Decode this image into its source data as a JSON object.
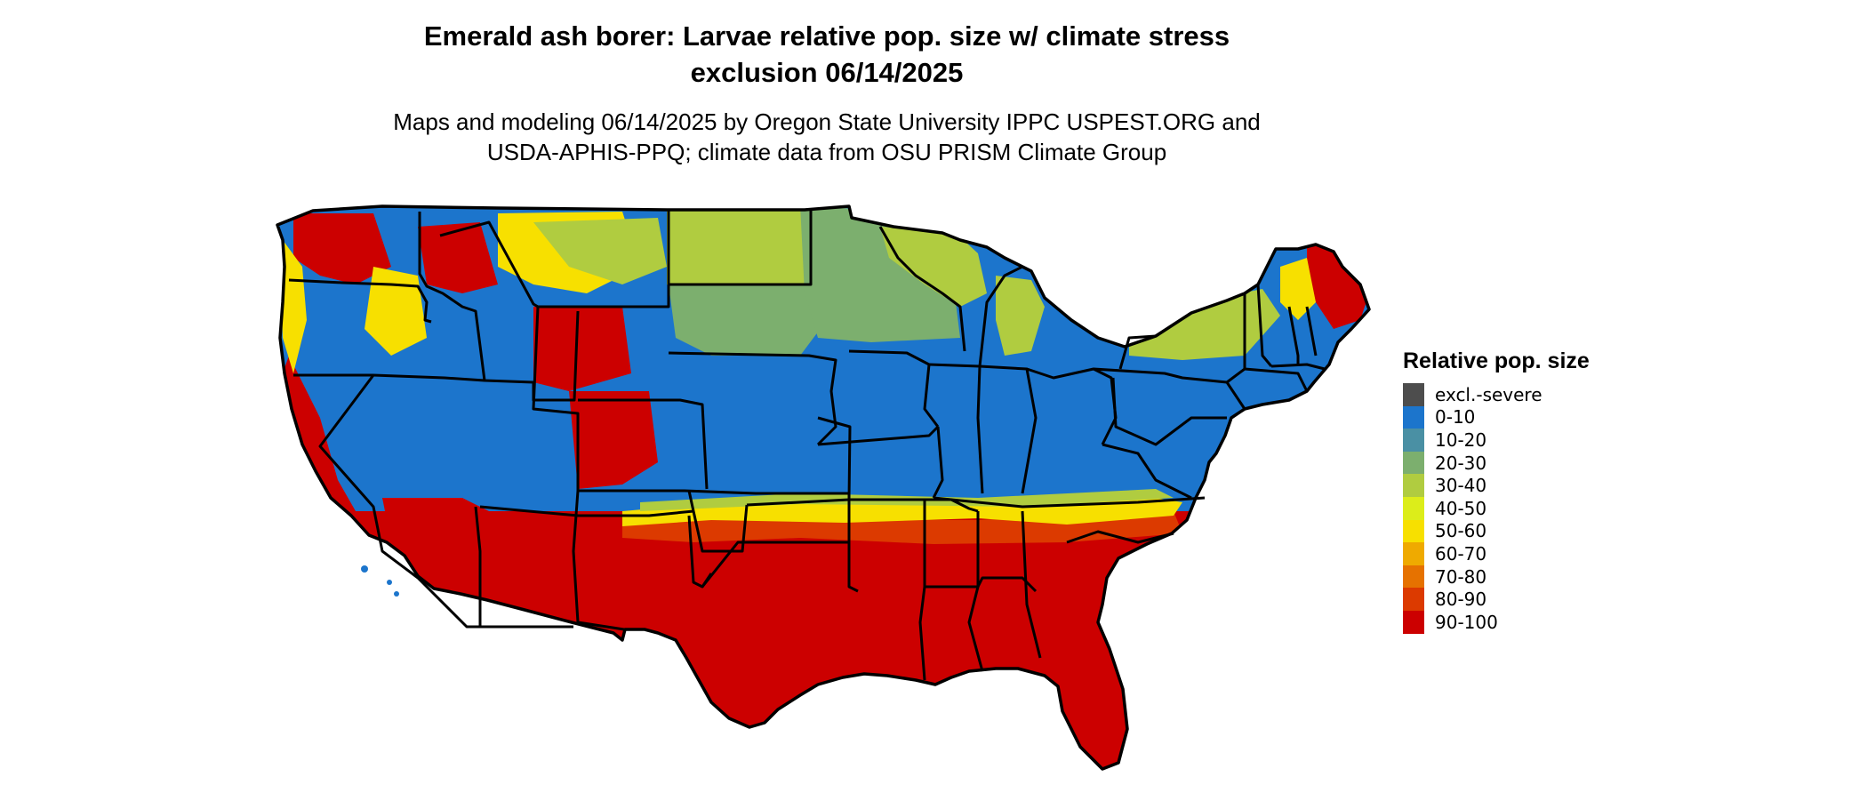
{
  "title": {
    "line1": "Emerald ash borer: Larvae relative pop. size w/ climate stress",
    "line2": "exclusion 06/14/2025"
  },
  "subtitle": {
    "line1": "Maps and modeling 06/14/2025 by Oregon State University IPPC USPEST.ORG and",
    "line2": "USDA-APHIS-PPQ; climate data from OSU PRISM Climate Group"
  },
  "legend": {
    "title": "Relative pop. size",
    "items": [
      {
        "label": "excl.-severe",
        "color": "#4d4d4d"
      },
      {
        "label": "0-10",
        "color": "#1c75cc"
      },
      {
        "label": "10-20",
        "color": "#4a90a4"
      },
      {
        "label": "20-30",
        "color": "#7caf6e"
      },
      {
        "label": "30-40",
        "color": "#b0cc40"
      },
      {
        "label": "40-50",
        "color": "#dced1a"
      },
      {
        "label": "50-60",
        "color": "#f7e000"
      },
      {
        "label": "60-70",
        "color": "#efaa00"
      },
      {
        "label": "70-80",
        "color": "#e67200"
      },
      {
        "label": "80-90",
        "color": "#dc3a00"
      },
      {
        "label": "90-100",
        "color": "#cc0000"
      }
    ]
  },
  "map": {
    "region": "Contiguous United States",
    "zones": [
      {
        "area": "Pacific Northwest & northern Rockies",
        "category": "mixed 0-10 to 90-100"
      },
      {
        "area": "Northern Plains",
        "category": "30-40"
      },
      {
        "area": "Upper Midwest",
        "category": "20-30"
      },
      {
        "area": "Central Plains & Midwest",
        "category": "0-10"
      },
      {
        "area": "Ohio Valley & Mid-Atlantic",
        "category": "0-10"
      },
      {
        "area": "Northern New England",
        "category": "mixed 20-30 to 90-100"
      },
      {
        "area": "Southern transition belt",
        "category": "50-60 to 80-90"
      },
      {
        "area": "Southeast & Texas",
        "category": "90-100"
      },
      {
        "area": "Desert Southwest",
        "category": "90-100"
      },
      {
        "area": "Great Basin",
        "category": "0-10"
      },
      {
        "area": "Central California",
        "category": "0-10"
      }
    ]
  }
}
